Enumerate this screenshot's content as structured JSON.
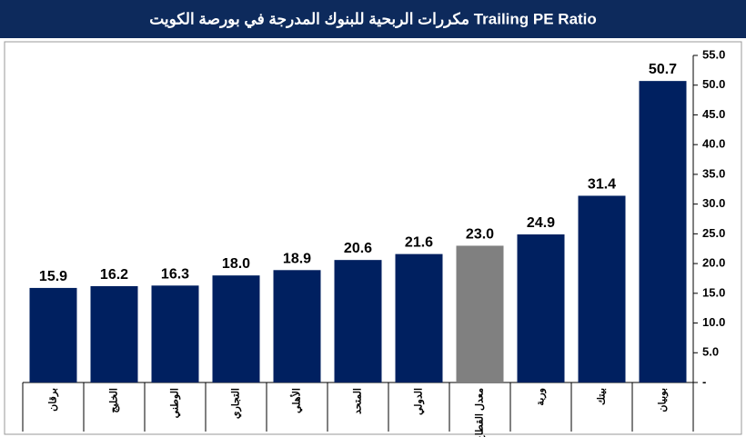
{
  "chart_data": {
    "type": "bar",
    "title": "مكررات الربحية  للبنوك المدرجة في بورصة الكويت  Trailing PE Ratio",
    "categories": [
      "برقان",
      "الخليج",
      "الوطني",
      "التجاري",
      "الأهلي",
      "المتحد",
      "الدولي",
      "معدل القطاع",
      "وربة",
      "بيتك",
      "بوبيان"
    ],
    "values": [
      15.9,
      16.2,
      16.3,
      18.0,
      18.9,
      20.6,
      21.6,
      23.0,
      24.9,
      31.4,
      50.7
    ],
    "value_labels": [
      "15.9",
      "16.2",
      "16.3",
      "18.0",
      "18.9",
      "20.6",
      "21.6",
      "23.0",
      "24.9",
      "31.4",
      "50.7"
    ],
    "colors": [
      "#002060",
      "#002060",
      "#002060",
      "#002060",
      "#002060",
      "#002060",
      "#002060",
      "#808080",
      "#002060",
      "#002060",
      "#002060"
    ],
    "ylim": [
      0,
      55
    ],
    "yticks": [
      {
        "value": 0,
        "label": "-"
      },
      {
        "value": 5,
        "label": "5.0"
      },
      {
        "value": 10,
        "label": "10.0"
      },
      {
        "value": 15,
        "label": "15.0"
      },
      {
        "value": 20,
        "label": "20.0"
      },
      {
        "value": 25,
        "label": "25.0"
      },
      {
        "value": 30,
        "label": "30.0"
      },
      {
        "value": 35,
        "label": "35.0"
      },
      {
        "value": 40,
        "label": "40.0"
      },
      {
        "value": 45,
        "label": "45.0"
      },
      {
        "value": 50,
        "label": "50.0"
      },
      {
        "value": 55,
        "label": "55.0"
      }
    ],
    "y_axis_side": "right"
  }
}
